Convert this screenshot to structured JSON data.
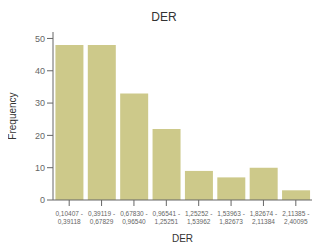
{
  "chart_data": {
    "type": "bar",
    "title": "DER",
    "xlabel": "DER",
    "ylabel": "Frequency",
    "categories": [
      "0,10407 -\n0,39118",
      "0,39119 -\n0,67829",
      "0,67830 -\n0,96540",
      "0,96541 -\n1,25251",
      "1,25252 -\n1,53962",
      "1,53963 -\n1,82673",
      "1,82674 -\n2,11384",
      "2,11385 -\n2,40095"
    ],
    "values": [
      48,
      48,
      33,
      22,
      9,
      7,
      10,
      3
    ],
    "color": "#cdc98a",
    "ylim": [
      0,
      52
    ],
    "yticks": [
      0,
      10,
      20,
      30,
      40,
      50
    ],
    "grid": false
  }
}
